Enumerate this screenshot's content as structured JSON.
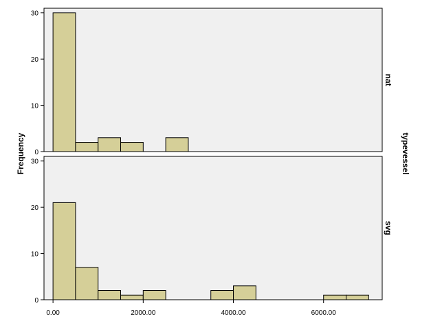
{
  "chart_data": {
    "type": "bar",
    "subtype": "histogram",
    "ylabel": "Frequency",
    "facet_label": "typevessel",
    "bin_width": 500,
    "colors": {
      "bar_fill": "#d5cf98",
      "bar_stroke": "#000000",
      "panel_bg": "#f0f0f0"
    },
    "xlim": [
      -200,
      7300
    ],
    "x_ticks": [
      {
        "value": 0,
        "label": "0.00"
      },
      {
        "value": 2000,
        "label": "2000.00"
      },
      {
        "value": 4000,
        "label": "4000.00"
      },
      {
        "value": 6000,
        "label": "6000.00"
      }
    ],
    "panels": [
      {
        "name": "nat",
        "ylim": [
          0,
          31
        ],
        "y_ticks": [
          {
            "value": 0,
            "label": "0"
          },
          {
            "value": 10,
            "label": "10"
          },
          {
            "value": 20,
            "label": "20"
          },
          {
            "value": 30,
            "label": "30"
          }
        ],
        "bins": [
          {
            "start": 0,
            "end": 500,
            "count": 30
          },
          {
            "start": 500,
            "end": 1000,
            "count": 2
          },
          {
            "start": 1000,
            "end": 1500,
            "count": 3
          },
          {
            "start": 1500,
            "end": 2000,
            "count": 2
          },
          {
            "start": 2500,
            "end": 3000,
            "count": 3
          }
        ]
      },
      {
        "name": "svg",
        "ylim": [
          0,
          31
        ],
        "y_ticks": [
          {
            "value": 0,
            "label": "0"
          },
          {
            "value": 10,
            "label": "10"
          },
          {
            "value": 20,
            "label": "20"
          },
          {
            "value": 30,
            "label": "30"
          }
        ],
        "bins": [
          {
            "start": 0,
            "end": 500,
            "count": 21
          },
          {
            "start": 500,
            "end": 1000,
            "count": 7
          },
          {
            "start": 1000,
            "end": 1500,
            "count": 2
          },
          {
            "start": 1500,
            "end": 2000,
            "count": 1
          },
          {
            "start": 2000,
            "end": 2500,
            "count": 2
          },
          {
            "start": 3500,
            "end": 4000,
            "count": 2
          },
          {
            "start": 4000,
            "end": 4500,
            "count": 3
          },
          {
            "start": 6000,
            "end": 6500,
            "count": 1
          },
          {
            "start": 6500,
            "end": 7000,
            "count": 1
          }
        ]
      }
    ]
  }
}
